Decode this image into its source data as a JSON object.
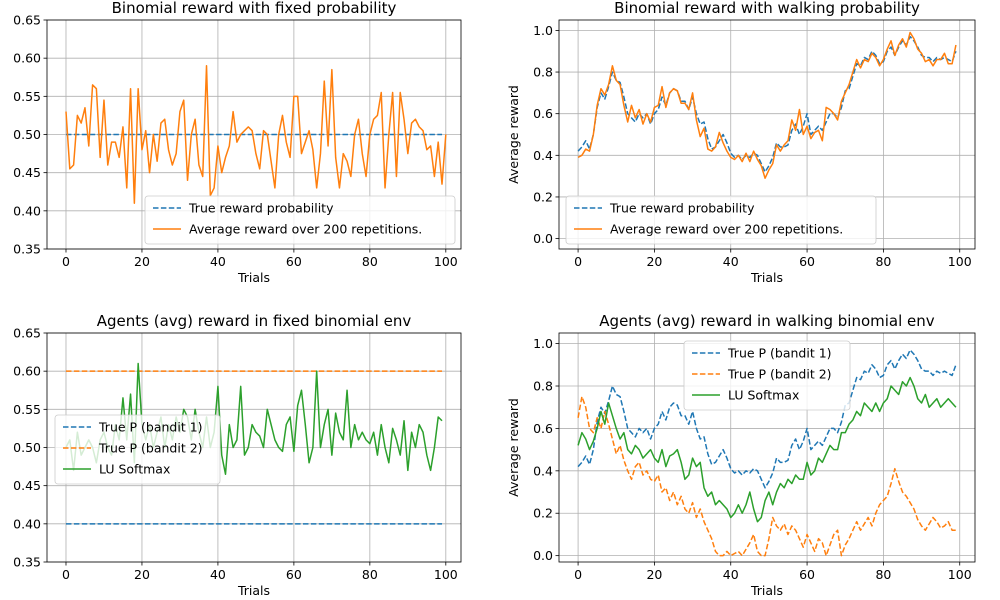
{
  "chart_data": [
    {
      "type": "line",
      "title": "Binomial reward with fixed probability",
      "xlabel": "Trials",
      "ylabel": "",
      "xlim": [
        -5,
        104
      ],
      "ylim": [
        0.35,
        0.65
      ],
      "xticks": [
        0,
        20,
        40,
        60,
        80,
        100
      ],
      "yticks": [
        0.35,
        0.4,
        0.45,
        0.5,
        0.55,
        0.6,
        0.65
      ],
      "ytick_decimals": 2,
      "grid": true,
      "legend_position": "lower-right",
      "series": [
        {
          "name": "True reward probability",
          "color": "#1f77b4",
          "dash": true,
          "x_start": 0,
          "values": [
            0.5,
            0.5
          ]
        },
        {
          "name": "Average reward over 200 repetitions.",
          "color": "#ff7f0e",
          "dash": false,
          "x_start": 0,
          "values": [
            0.53,
            0.455,
            0.46,
            0.525,
            0.515,
            0.535,
            0.485,
            0.565,
            0.56,
            0.47,
            0.545,
            0.46,
            0.49,
            0.49,
            0.47,
            0.51,
            0.43,
            0.56,
            0.41,
            0.56,
            0.48,
            0.505,
            0.45,
            0.5,
            0.465,
            0.515,
            0.52,
            0.48,
            0.46,
            0.475,
            0.53,
            0.545,
            0.44,
            0.5,
            0.52,
            0.46,
            0.445,
            0.59,
            0.42,
            0.43,
            0.485,
            0.45,
            0.47,
            0.485,
            0.53,
            0.49,
            0.5,
            0.505,
            0.51,
            0.505,
            0.475,
            0.455,
            0.505,
            0.5,
            0.465,
            0.43,
            0.5,
            0.525,
            0.49,
            0.47,
            0.55,
            0.55,
            0.475,
            0.49,
            0.505,
            0.48,
            0.43,
            0.475,
            0.57,
            0.485,
            0.585,
            0.47,
            0.43,
            0.475,
            0.465,
            0.445,
            0.5,
            0.52,
            0.475,
            0.445,
            0.5,
            0.52,
            0.525,
            0.555,
            0.43,
            0.5,
            0.555,
            0.445,
            0.555,
            0.52,
            0.475,
            0.515,
            0.52,
            0.51,
            0.505,
            0.48,
            0.485,
            0.445,
            0.49,
            0.435,
            0.5
          ]
        }
      ]
    },
    {
      "type": "line",
      "title": "Binomial reward with walking probability",
      "xlabel": "Trials",
      "ylabel": "Average reward",
      "xlim": [
        -5,
        104
      ],
      "ylim": [
        -0.05,
        1.05
      ],
      "xticks": [
        0,
        20,
        40,
        60,
        80,
        100
      ],
      "yticks": [
        0.0,
        0.2,
        0.4,
        0.6,
        0.8,
        1.0
      ],
      "ytick_decimals": 1,
      "grid": true,
      "legend_position": "lower-left",
      "series": [
        {
          "name": "True reward probability",
          "color": "#1f77b4",
          "dash": true,
          "x_start": 0,
          "values": [
            0.42,
            0.44,
            0.47,
            0.43,
            0.5,
            0.63,
            0.7,
            0.67,
            0.73,
            0.8,
            0.76,
            0.75,
            0.68,
            0.6,
            0.58,
            0.56,
            0.6,
            0.58,
            0.6,
            0.55,
            0.6,
            0.62,
            0.68,
            0.64,
            0.7,
            0.72,
            0.71,
            0.66,
            0.66,
            0.62,
            0.68,
            0.6,
            0.55,
            0.56,
            0.48,
            0.43,
            0.44,
            0.47,
            0.5,
            0.46,
            0.41,
            0.39,
            0.4,
            0.38,
            0.4,
            0.39,
            0.41,
            0.4,
            0.36,
            0.32,
            0.35,
            0.39,
            0.46,
            0.44,
            0.44,
            0.45,
            0.52,
            0.55,
            0.5,
            0.54,
            0.6,
            0.5,
            0.52,
            0.54,
            0.52,
            0.56,
            0.6,
            0.6,
            0.58,
            0.63,
            0.71,
            0.72,
            0.78,
            0.84,
            0.83,
            0.87,
            0.86,
            0.9,
            0.88,
            0.84,
            0.85,
            0.9,
            0.92,
            0.88,
            0.92,
            0.95,
            0.93,
            0.97,
            0.95,
            0.92,
            0.88,
            0.87,
            0.87,
            0.85,
            0.87,
            0.86,
            0.87,
            0.86,
            0.85,
            0.9
          ]
        },
        {
          "name": "Average reward over 200 repetitions.",
          "color": "#ff7f0e",
          "dash": false,
          "x_start": 0,
          "values": [
            0.39,
            0.4,
            0.43,
            0.42,
            0.5,
            0.64,
            0.72,
            0.69,
            0.74,
            0.83,
            0.76,
            0.74,
            0.64,
            0.56,
            0.64,
            0.58,
            0.62,
            0.55,
            0.6,
            0.56,
            0.63,
            0.64,
            0.73,
            0.63,
            0.7,
            0.72,
            0.71,
            0.65,
            0.65,
            0.62,
            0.7,
            0.57,
            0.49,
            0.53,
            0.43,
            0.42,
            0.44,
            0.51,
            0.46,
            0.42,
            0.39,
            0.38,
            0.4,
            0.37,
            0.41,
            0.37,
            0.42,
            0.38,
            0.35,
            0.29,
            0.33,
            0.36,
            0.45,
            0.42,
            0.45,
            0.47,
            0.57,
            0.52,
            0.62,
            0.5,
            0.54,
            0.48,
            0.51,
            0.52,
            0.47,
            0.63,
            0.62,
            0.6,
            0.57,
            0.66,
            0.7,
            0.74,
            0.8,
            0.86,
            0.82,
            0.86,
            0.85,
            0.89,
            0.87,
            0.83,
            0.86,
            0.91,
            0.95,
            0.88,
            0.93,
            0.96,
            0.92,
            0.99,
            0.96,
            0.91,
            0.89,
            0.85,
            0.86,
            0.83,
            0.86,
            0.86,
            0.89,
            0.84,
            0.84,
            0.93
          ]
        }
      ]
    },
    {
      "type": "line",
      "title": "Agents (avg) reward in fixed binomial env",
      "xlabel": "Trials",
      "ylabel": "",
      "xlim": [
        -5,
        104
      ],
      "ylim": [
        0.35,
        0.65
      ],
      "xticks": [
        0,
        20,
        40,
        60,
        80,
        100
      ],
      "yticks": [
        0.35,
        0.4,
        0.45,
        0.5,
        0.55,
        0.6,
        0.65
      ],
      "ytick_decimals": 2,
      "grid": true,
      "legend_position": "center-left",
      "series": [
        {
          "name": "True P (bandit 1)",
          "color": "#1f77b4",
          "dash": true,
          "x_start": 0,
          "values": [
            0.4,
            0.4
          ]
        },
        {
          "name": "True P (bandit 2)",
          "color": "#ff7f0e",
          "dash": true,
          "x_start": 0,
          "values": [
            0.6,
            0.6
          ]
        },
        {
          "name": "LU Softmax",
          "color": "#2ca02c",
          "dash": false,
          "x_start": 0,
          "values": [
            0.5,
            0.51,
            0.47,
            0.52,
            0.49,
            0.5,
            0.51,
            0.5,
            0.48,
            0.51,
            0.52,
            0.5,
            0.49,
            0.53,
            0.51,
            0.565,
            0.51,
            0.57,
            0.48,
            0.61,
            0.53,
            0.51,
            0.53,
            0.5,
            0.52,
            0.54,
            0.5,
            0.53,
            0.51,
            0.54,
            0.52,
            0.55,
            0.54,
            0.51,
            0.55,
            0.52,
            0.5,
            0.54,
            0.5,
            0.52,
            0.58,
            0.49,
            0.465,
            0.53,
            0.5,
            0.51,
            0.58,
            0.49,
            0.5,
            0.53,
            0.52,
            0.515,
            0.5,
            0.55,
            0.53,
            0.51,
            0.5,
            0.495,
            0.53,
            0.54,
            0.495,
            0.555,
            0.575,
            0.53,
            0.48,
            0.5,
            0.6,
            0.5,
            0.53,
            0.55,
            0.49,
            0.545,
            0.52,
            0.51,
            0.575,
            0.5,
            0.53,
            0.51,
            0.52,
            0.51,
            0.505,
            0.52,
            0.49,
            0.53,
            0.5,
            0.48,
            0.525,
            0.51,
            0.49,
            0.535,
            0.47,
            0.52,
            0.5,
            0.53,
            0.52,
            0.49,
            0.47,
            0.5,
            0.54,
            0.535
          ]
        }
      ]
    },
    {
      "type": "line",
      "title": "Agents (avg) reward in walking binomial env",
      "xlabel": "Trials",
      "ylabel": "Average reward",
      "xlim": [
        -5,
        104
      ],
      "ylim": [
        -0.03,
        1.05
      ],
      "xticks": [
        0,
        20,
        40,
        60,
        80,
        100
      ],
      "yticks": [
        0.0,
        0.2,
        0.4,
        0.6,
        0.8,
        1.0
      ],
      "ytick_decimals": 1,
      "grid": true,
      "legend_position": "upper-center",
      "series": [
        {
          "name": "True P (bandit 1)",
          "color": "#1f77b4",
          "dash": true,
          "x_start": 0,
          "values": [
            0.42,
            0.44,
            0.47,
            0.43,
            0.5,
            0.63,
            0.7,
            0.67,
            0.73,
            0.8,
            0.76,
            0.75,
            0.68,
            0.6,
            0.58,
            0.56,
            0.6,
            0.58,
            0.6,
            0.55,
            0.6,
            0.62,
            0.68,
            0.64,
            0.7,
            0.72,
            0.71,
            0.66,
            0.66,
            0.62,
            0.68,
            0.6,
            0.55,
            0.56,
            0.48,
            0.43,
            0.44,
            0.47,
            0.5,
            0.46,
            0.41,
            0.39,
            0.4,
            0.38,
            0.4,
            0.39,
            0.41,
            0.4,
            0.36,
            0.32,
            0.35,
            0.39,
            0.46,
            0.44,
            0.44,
            0.45,
            0.52,
            0.55,
            0.5,
            0.54,
            0.6,
            0.5,
            0.52,
            0.54,
            0.52,
            0.56,
            0.6,
            0.6,
            0.58,
            0.63,
            0.71,
            0.72,
            0.78,
            0.84,
            0.83,
            0.87,
            0.86,
            0.9,
            0.88,
            0.84,
            0.85,
            0.9,
            0.92,
            0.88,
            0.92,
            0.95,
            0.93,
            0.97,
            0.95,
            0.92,
            0.88,
            0.87,
            0.87,
            0.85,
            0.87,
            0.86,
            0.87,
            0.86,
            0.85,
            0.9
          ]
        },
        {
          "name": "True P (bandit 2)",
          "color": "#ff7f0e",
          "dash": true,
          "x_start": 0,
          "values": [
            0.65,
            0.75,
            0.7,
            0.6,
            0.58,
            0.65,
            0.6,
            0.68,
            0.62,
            0.55,
            0.48,
            0.52,
            0.45,
            0.4,
            0.36,
            0.42,
            0.44,
            0.38,
            0.4,
            0.36,
            0.35,
            0.38,
            0.3,
            0.32,
            0.26,
            0.3,
            0.24,
            0.28,
            0.22,
            0.2,
            0.25,
            0.18,
            0.22,
            0.16,
            0.12,
            0.08,
            0.02,
            0.0,
            0.0,
            0.02,
            0.0,
            0.01,
            0.02,
            0.0,
            0.03,
            0.06,
            0.1,
            0.02,
            0.0,
            0.0,
            0.08,
            0.18,
            0.14,
            0.12,
            0.15,
            0.1,
            0.14,
            0.12,
            0.08,
            0.04,
            0.1,
            0.06,
            0.02,
            0.08,
            0.06,
            0.0,
            0.05,
            0.1,
            0.12,
            0.0,
            0.05,
            0.08,
            0.12,
            0.16,
            0.12,
            0.15,
            0.18,
            0.14,
            0.2,
            0.24,
            0.26,
            0.28,
            0.34,
            0.41,
            0.35,
            0.3,
            0.28,
            0.25,
            0.22,
            0.17,
            0.14,
            0.12,
            0.15,
            0.18,
            0.16,
            0.13,
            0.14,
            0.16,
            0.12,
            0.12
          ]
        },
        {
          "name": "LU Softmax",
          "color": "#2ca02c",
          "dash": false,
          "x_start": 0,
          "values": [
            0.52,
            0.58,
            0.55,
            0.5,
            0.54,
            0.6,
            0.68,
            0.62,
            0.72,
            0.66,
            0.6,
            0.55,
            0.58,
            0.5,
            0.48,
            0.52,
            0.5,
            0.46,
            0.48,
            0.5,
            0.46,
            0.44,
            0.5,
            0.42,
            0.47,
            0.48,
            0.5,
            0.44,
            0.36,
            0.38,
            0.46,
            0.42,
            0.44,
            0.32,
            0.28,
            0.3,
            0.24,
            0.26,
            0.24,
            0.22,
            0.18,
            0.2,
            0.24,
            0.2,
            0.24,
            0.3,
            0.22,
            0.16,
            0.18,
            0.26,
            0.3,
            0.24,
            0.3,
            0.34,
            0.32,
            0.36,
            0.34,
            0.38,
            0.36,
            0.36,
            0.44,
            0.38,
            0.4,
            0.46,
            0.44,
            0.48,
            0.52,
            0.5,
            0.5,
            0.58,
            0.58,
            0.62,
            0.64,
            0.68,
            0.66,
            0.72,
            0.7,
            0.68,
            0.72,
            0.68,
            0.72,
            0.74,
            0.8,
            0.78,
            0.76,
            0.82,
            0.8,
            0.84,
            0.8,
            0.74,
            0.72,
            0.76,
            0.7,
            0.72,
            0.74,
            0.7,
            0.72,
            0.74,
            0.72,
            0.7
          ]
        }
      ]
    }
  ]
}
